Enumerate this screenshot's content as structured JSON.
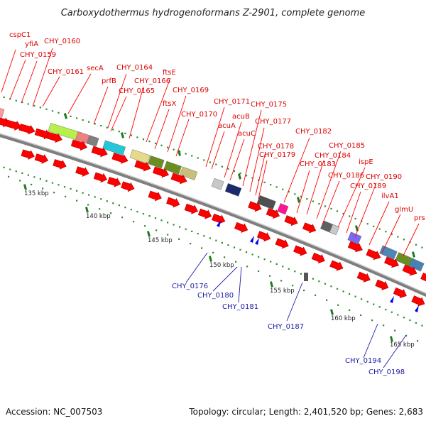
{
  "title": "Carboxydothermus hydrogenoformans Z-2901, complete genome",
  "footer": {
    "accession": "Accession: NC_007503",
    "topology": "Topology: circular; Length: 2,401,520 bp; Genes: 2,683"
  },
  "kbp_labels": [
    "135 kbp",
    "140 kbp",
    "145 kbp",
    "150 kbp",
    "155 kbp",
    "160 kbp",
    "165 kbp"
  ],
  "genes_top": [
    "yfiA",
    "cspC1",
    "CHY_0159",
    "CHY_0160",
    "CHY_0161",
    "secA",
    "prfB",
    "CHY_0164",
    "CHY_0165",
    "CHY_0166",
    "ftsE",
    "ftsX",
    "CHY_0169",
    "CHY_0170",
    "CHY_0171",
    "acuA",
    "acuB",
    "acuC",
    "CHY_0175",
    "CHY_0177",
    "CHY_0178",
    "CHY_0179",
    "CHY_0182",
    "CHY_0183",
    "CHY_0184",
    "CHY_0185",
    "CHY_0186",
    "ispE",
    "CHY_0189",
    "CHY_0190",
    "ilvA1",
    "glmU",
    "prs"
  ],
  "genes_bottom": [
    "CHY_0176",
    "CHY_0180",
    "CHY_0181",
    "CHY_0187",
    "CHY_0194",
    "CHY_0198"
  ],
  "colors": {
    "forward": "#ff0000",
    "reverse": "#0000ff",
    "label_forward": "#dd0000",
    "label_reverse": "#1a1aa8"
  }
}
